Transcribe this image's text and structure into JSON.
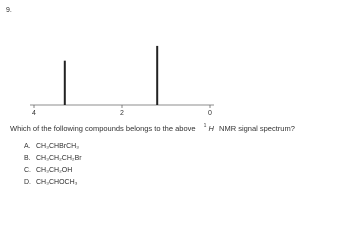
{
  "question_number": "9.",
  "chart_data": {
    "type": "spectrum",
    "x": [
      3.3,
      1.2
    ],
    "values": [
      0.75,
      1.0
    ],
    "color": "#222222",
    "xlim": [
      4,
      0
    ],
    "xticks": [
      4,
      2,
      0
    ],
    "ylim": [
      0,
      1.1
    ]
  },
  "question": {
    "before": "Which of the following compounds belongs to the above",
    "mass": "1",
    "nucleus": "H",
    "after": "NMR signal spectrum?"
  },
  "options": [
    {
      "letter": "A.",
      "text": "CH₃CHBrCH₃"
    },
    {
      "letter": "B.",
      "text": "CH₃CH₂CH₂Br"
    },
    {
      "letter": "C.",
      "text": "CH₃CH₂OH"
    },
    {
      "letter": "D.",
      "text": "CH₃CHOCH₃"
    }
  ]
}
